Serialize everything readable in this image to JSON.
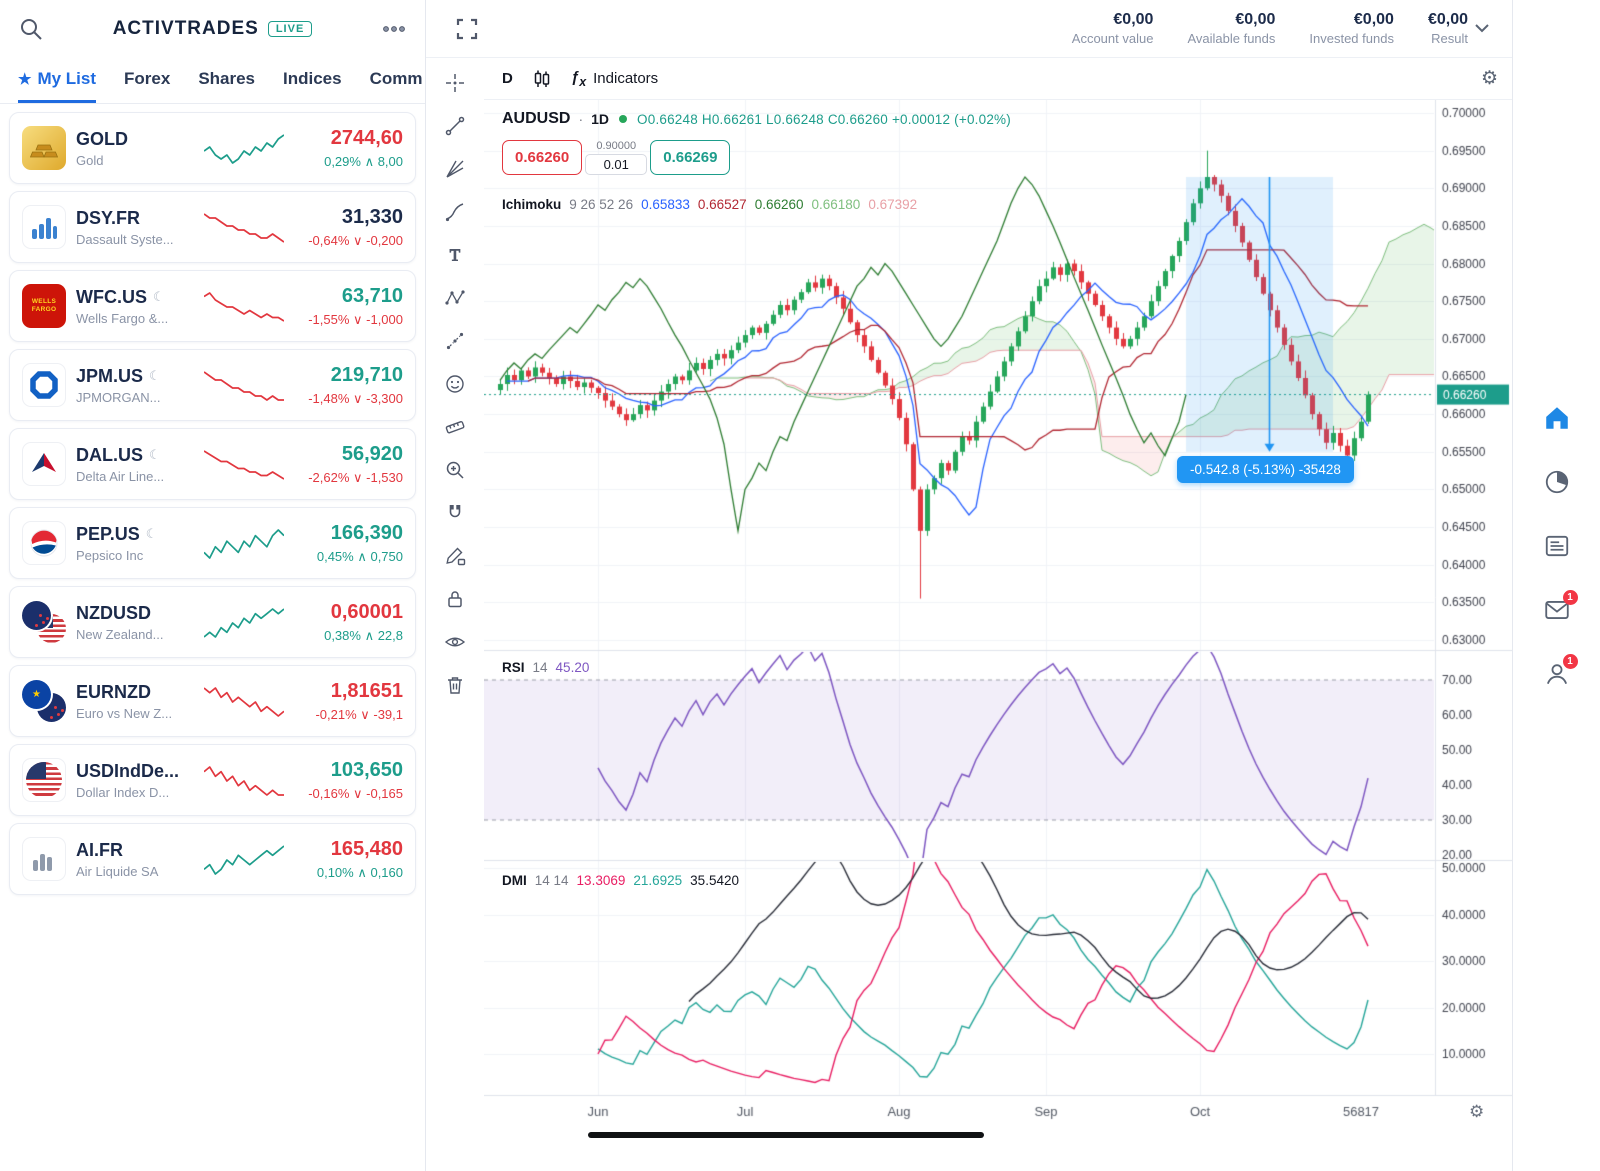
{
  "watchlist": {
    "logo": {
      "part1": "Activ",
      "part2": "Trades",
      "badge": "LIVE"
    },
    "tabs": [
      {
        "label": "My List",
        "active": true
      },
      {
        "label": "Forex",
        "active": false
      },
      {
        "label": "Shares",
        "active": false
      },
      {
        "label": "Indices",
        "active": false
      },
      {
        "label": "Comm",
        "active": false
      }
    ],
    "items": [
      {
        "icon": "gold",
        "symbol": "GOLD",
        "name": "Gold",
        "closed": false,
        "price": "2744,60",
        "price_color": "red",
        "change": "0,29% ∧ 8,00",
        "change_color": "green",
        "spark_color": "green",
        "spark": [
          5,
          6,
          4,
          3,
          4,
          2,
          3,
          5,
          4,
          6,
          5,
          7,
          6,
          8,
          9
        ]
      },
      {
        "icon": "dsy",
        "symbol": "DSY.FR",
        "name": "Dassault Syste...",
        "closed": false,
        "price": "31,330",
        "price_color": "dark",
        "change": "-0,64% ∨ -0,200",
        "change_color": "red",
        "spark_color": "red",
        "spark": [
          9,
          8,
          8,
          7,
          6,
          6,
          5,
          5,
          4,
          4,
          3,
          3,
          4,
          3,
          2
        ]
      },
      {
        "icon": "wfc",
        "symbol": "WFC.US",
        "name": "Wells Fargo &...",
        "closed": true,
        "price": "63,710",
        "price_color": "green",
        "change": "-1,55% ∨ -1,000",
        "change_color": "red",
        "spark_color": "red",
        "spark": [
          8,
          9,
          7,
          6,
          5,
          5,
          4,
          3,
          4,
          3,
          2,
          3,
          2,
          2,
          1
        ]
      },
      {
        "icon": "jpm",
        "symbol": "JPM.US",
        "name": "JPMORGAN...",
        "closed": true,
        "price": "219,710",
        "price_color": "green",
        "change": "-1,48% ∨ -3,300",
        "change_color": "red",
        "spark_color": "red",
        "spark": [
          9,
          8,
          7,
          7,
          6,
          5,
          5,
          4,
          4,
          3,
          3,
          2,
          3,
          2,
          2
        ]
      },
      {
        "icon": "dal",
        "symbol": "DAL.US",
        "name": "Delta Air Line...",
        "closed": true,
        "price": "56,920",
        "price_color": "green",
        "change": "-2,62% ∨ -1,530",
        "change_color": "red",
        "spark_color": "red",
        "spark": [
          9,
          8,
          7,
          6,
          6,
          5,
          4,
          4,
          3,
          3,
          2,
          2,
          3,
          2,
          1
        ]
      },
      {
        "icon": "pep",
        "symbol": "PEP.US",
        "name": "Pepsico Inc",
        "closed": true,
        "price": "166,390",
        "price_color": "green",
        "change": "0,45% ∧ 0,750",
        "change_color": "green",
        "spark_color": "green",
        "spark": [
          4,
          3,
          5,
          4,
          6,
          5,
          4,
          6,
          5,
          7,
          6,
          5,
          7,
          8,
          7
        ]
      },
      {
        "icon": "nzdusd",
        "symbol": "NZDUSD",
        "name": "New Zealand...",
        "closed": false,
        "price": "0,60001",
        "price_color": "red",
        "change": "0,38% ∧ 22,8",
        "change_color": "green",
        "spark_color": "green",
        "spark": [
          3,
          4,
          3,
          5,
          4,
          6,
          5,
          7,
          6,
          8,
          7,
          8,
          9,
          8,
          9
        ]
      },
      {
        "icon": "eurnzd",
        "symbol": "EURNZD",
        "name": "Euro vs New Z...",
        "closed": false,
        "price": "1,81651",
        "price_color": "red",
        "change": "-0,21% ∨ -39,1",
        "change_color": "red",
        "spark_color": "red",
        "spark": [
          8,
          7,
          8,
          6,
          7,
          5,
          6,
          5,
          4,
          5,
          3,
          4,
          3,
          2,
          3
        ]
      },
      {
        "icon": "usd",
        "symbol": "USDIndDe...",
        "name": "Dollar Index D...",
        "closed": false,
        "price": "103,650",
        "price_color": "green",
        "change": "-0,16% ∨ -0,165",
        "change_color": "red",
        "spark_color": "red",
        "spark": [
          7,
          8,
          6,
          7,
          5,
          6,
          4,
          5,
          3,
          4,
          3,
          2,
          3,
          2,
          2
        ]
      },
      {
        "icon": "aifr",
        "symbol": "AI.FR",
        "name": "Air Liquide SA",
        "closed": false,
        "price": "165,480",
        "price_color": "red",
        "change": "0,10% ∧ 0,160",
        "change_color": "green",
        "spark_color": "green",
        "spark": [
          4,
          5,
          3,
          4,
          6,
          5,
          7,
          6,
          5,
          6,
          7,
          8,
          7,
          8,
          9
        ]
      }
    ]
  },
  "topbar": {
    "stats": [
      {
        "value": "€0,00",
        "label": "Account value"
      },
      {
        "value": "€0,00",
        "label": "Available funds"
      },
      {
        "value": "€0,00",
        "label": "Invested funds"
      },
      {
        "value": "€0,00",
        "label": "Result"
      }
    ]
  },
  "toolbar": {
    "timeframe": "D",
    "indicators_label": "Indicators"
  },
  "chart": {
    "legend": {
      "symbol": "AUDUSD",
      "separator": "·",
      "timeframe": "1D",
      "ohlc": "O0.66248  H0.66261  L0.66248  C0.66260  +0.00012 (+0.02%)"
    },
    "trade": {
      "sell": "0.66260",
      "amount_top": "0.90000",
      "amount": "0.01",
      "buy": "0.66269"
    },
    "ichimoku": {
      "name": "Ichimoku",
      "params": "9 26 52 26",
      "values": [
        {
          "v": "0.65833",
          "color": "#2962ff"
        },
        {
          "v": "0.66527",
          "color": "#b22833"
        },
        {
          "v": "0.66260",
          "color": "#2e7d32"
        },
        {
          "v": "0.66180",
          "color": "#7fbf7f"
        },
        {
          "v": "0.67392",
          "color": "#e8a0a6"
        }
      ]
    },
    "rsi_legend": {
      "name": "RSI",
      "params": "14",
      "value": "45.20"
    },
    "dmi_legend": {
      "name": "DMI",
      "params": "14 14",
      "values": [
        {
          "v": "13.3069",
          "color": "#e91e63"
        },
        {
          "v": "21.6925",
          "color": "#26a69a"
        },
        {
          "v": "35.5420",
          "color": "#131722"
        }
      ]
    },
    "price_tag": "0.66260",
    "measure_tooltip": "-0.542.8 (-5.13%) -35428",
    "axes": {
      "price_ticks": [
        "0.70000",
        "0.69500",
        "0.69000",
        "0.68500",
        "0.68000",
        "0.67500",
        "0.67000",
        "0.66500",
        "0.66000",
        "0.65500",
        "0.65000",
        "0.64500",
        "0.64000",
        "0.63500",
        "0.63000"
      ],
      "rsi_ticks": [
        "70.00",
        "60.00",
        "50.00",
        "40.00",
        "30.00",
        "20.00"
      ],
      "dmi_ticks": [
        "50.0000",
        "40.0000",
        "30.0000",
        "20.0000",
        "10.0000"
      ],
      "x_labels": [
        {
          "label": "Jun",
          "i": 14,
          "grid": true
        },
        {
          "label": "Jul",
          "i": 35,
          "grid": true
        },
        {
          "label": "Aug",
          "i": 57,
          "grid": true
        },
        {
          "label": "Sep",
          "i": 78,
          "grid": true
        },
        {
          "label": "Oct",
          "i": 100,
          "grid": true
        },
        {
          "label": "56817",
          "i": 123,
          "grid": false
        }
      ]
    },
    "left_toolbar": [
      "crosshair",
      "trend-line",
      "gann-fan",
      "brush",
      "text-tool",
      "xabcd-pattern",
      "forecast",
      "emoji",
      "measure-ruler",
      "zoom-in",
      "magnet",
      "drawing-pencil-lock",
      "lock-all",
      "hide-drawings",
      "remove-drawings"
    ]
  },
  "chart_data": {
    "type": "candlestick",
    "symbol": "AUDUSD",
    "timeframe": "1D",
    "ohlc_display": {
      "o": "0.66248",
      "h": "0.66261",
      "l": "0.66248",
      "c": "0.66260",
      "change": "+0.00012 (+0.02%)"
    },
    "ylim": [
      0.63,
      0.7
    ],
    "last_price": 0.6626,
    "closes": [
      0.664,
      0.6652,
      0.6645,
      0.6658,
      0.665,
      0.6662,
      0.6655,
      0.6648,
      0.664,
      0.665,
      0.6644,
      0.6636,
      0.6642,
      0.6635,
      0.6628,
      0.6618,
      0.661,
      0.66,
      0.6592,
      0.66,
      0.6612,
      0.6605,
      0.6618,
      0.663,
      0.664,
      0.665,
      0.6645,
      0.6658,
      0.6668,
      0.666,
      0.6672,
      0.668,
      0.6674,
      0.6685,
      0.6695,
      0.6705,
      0.6715,
      0.6708,
      0.672,
      0.6732,
      0.6745,
      0.6738,
      0.6752,
      0.6762,
      0.6775,
      0.6768,
      0.678,
      0.677,
      0.6755,
      0.674,
      0.6722,
      0.6705,
      0.669,
      0.6672,
      0.6655,
      0.6638,
      0.662,
      0.6595,
      0.656,
      0.65,
      0.6445,
      0.65,
      0.6515,
      0.6535,
      0.6525,
      0.655,
      0.657,
      0.6565,
      0.659,
      0.661,
      0.663,
      0.665,
      0.667,
      0.669,
      0.671,
      0.673,
      0.675,
      0.677,
      0.678,
      0.6795,
      0.6785,
      0.68,
      0.679,
      0.6775,
      0.676,
      0.6745,
      0.673,
      0.6715,
      0.67,
      0.669,
      0.67,
      0.6715,
      0.673,
      0.675,
      0.677,
      0.679,
      0.681,
      0.683,
      0.6855,
      0.688,
      0.69,
      0.6915,
      0.6905,
      0.689,
      0.687,
      0.685,
      0.6828,
      0.6805,
      0.6782,
      0.676,
      0.6738,
      0.6715,
      0.6692,
      0.667,
      0.6648,
      0.6625,
      0.66,
      0.658,
      0.6562,
      0.6575,
      0.6558,
      0.6545,
      0.6568,
      0.659,
      0.6626
    ],
    "low_overrides": {
      "60": 0.6355
    },
    "high_overrides": {
      "101": 0.695
    },
    "indicators": {
      "ichimoku": [
        9,
        26,
        52,
        26
      ],
      "rsi": [
        14
      ],
      "dmi": [
        14,
        14
      ]
    },
    "rsi_range": [
      20,
      70
    ],
    "dmi_range": [
      5,
      50
    ],
    "measure": {
      "from_i": 98,
      "to_i": 119,
      "price_top": 0.6915,
      "price_bottom": 0.655
    }
  },
  "right_rail": {
    "mail_badge": "1",
    "contacts_badge": "1"
  }
}
